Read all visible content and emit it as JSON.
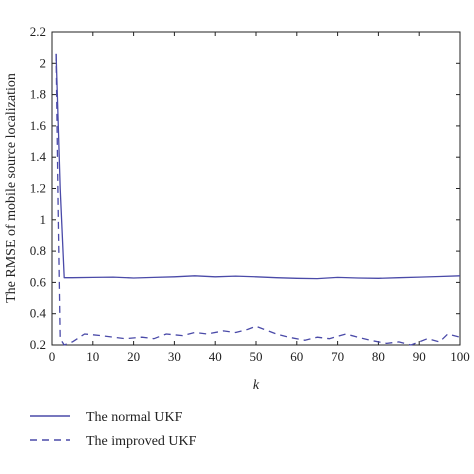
{
  "chart_data": {
    "type": "line",
    "title": "",
    "xlabel": "k",
    "ylabel": "The RMSE of mobile source localization",
    "xlim": [
      0,
      100
    ],
    "ylim": [
      0.2,
      2.2
    ],
    "xticks": [
      "0",
      "10",
      "20",
      "30",
      "40",
      "50",
      "60",
      "70",
      "80",
      "90",
      "100"
    ],
    "yticks": [
      "0.2",
      "0.4",
      "0.6",
      "0.8",
      "1",
      "1.2",
      "1.4",
      "1.6",
      "1.8",
      "2",
      "2.2"
    ],
    "grid": false,
    "legend_position": "below-left",
    "series": [
      {
        "name": "The normal UKF",
        "style": "solid",
        "color": "#4a4aa8",
        "x": [
          1,
          2,
          3,
          5,
          10,
          15,
          20,
          25,
          30,
          35,
          40,
          45,
          50,
          55,
          60,
          65,
          70,
          75,
          80,
          85,
          90,
          95,
          100
        ],
        "y": [
          2.06,
          1.2,
          0.63,
          0.63,
          0.632,
          0.634,
          0.628,
          0.632,
          0.636,
          0.642,
          0.636,
          0.64,
          0.636,
          0.63,
          0.626,
          0.624,
          0.632,
          0.628,
          0.626,
          0.63,
          0.634,
          0.638,
          0.642
        ]
      },
      {
        "name": "The improved UKF",
        "style": "dashed",
        "color": "#4a4aa8",
        "x": [
          1,
          1.5,
          2,
          3,
          5,
          8,
          12,
          15,
          18,
          22,
          25,
          28,
          32,
          35,
          38,
          42,
          45,
          48,
          50,
          52,
          55,
          58,
          62,
          65,
          68,
          72,
          75,
          78,
          82,
          85,
          88,
          90,
          92,
          95,
          97,
          100
        ],
        "y": [
          2.06,
          1.1,
          0.24,
          0.2,
          0.22,
          0.27,
          0.26,
          0.25,
          0.24,
          0.25,
          0.24,
          0.27,
          0.26,
          0.28,
          0.27,
          0.29,
          0.28,
          0.3,
          0.32,
          0.3,
          0.27,
          0.25,
          0.23,
          0.25,
          0.24,
          0.27,
          0.25,
          0.23,
          0.21,
          0.22,
          0.2,
          0.22,
          0.24,
          0.22,
          0.27,
          0.25
        ]
      }
    ]
  }
}
